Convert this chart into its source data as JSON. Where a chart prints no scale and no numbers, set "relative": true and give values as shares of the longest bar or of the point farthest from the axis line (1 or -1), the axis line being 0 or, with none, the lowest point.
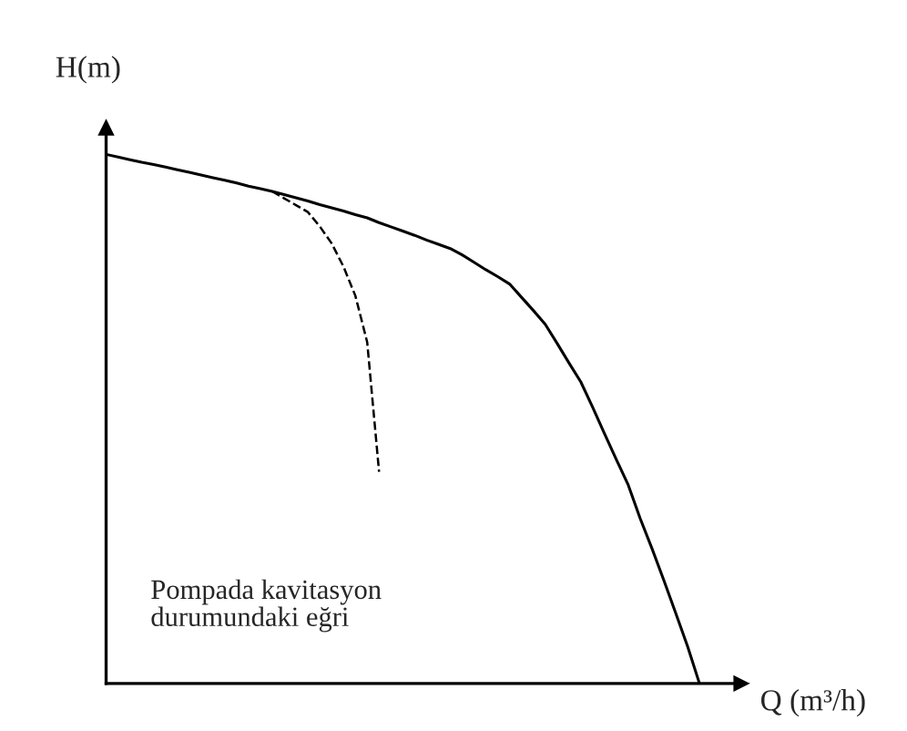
{
  "chart_data": {
    "type": "line",
    "relative": true,
    "xlabel": "Q (m³/h)",
    "ylabel": "H(m)",
    "categories": [
      null,
      null,
      null,
      null,
      null,
      null,
      null,
      null,
      null,
      null,
      null,
      null,
      null,
      null,
      null,
      null,
      null,
      null,
      null,
      null,
      null,
      null,
      null,
      null,
      null,
      null,
      null,
      null,
      null,
      null,
      null,
      null,
      null,
      null,
      null,
      null,
      null,
      null,
      null,
      null,
      null,
      null,
      null,
      null,
      null,
      null,
      null,
      null,
      null,
      null,
      null
    ],
    "series": [
      {
        "color": "#000000",
        "line_style": "solid",
        "values": [
          1.0,
          0.995,
          0.99,
          0.985,
          0.981,
          0.976,
          0.971,
          0.966,
          0.961,
          0.956,
          0.951,
          0.946,
          0.94,
          0.935,
          0.93,
          0.924,
          0.918,
          0.912,
          0.905,
          0.899,
          0.893,
          0.886,
          0.88,
          0.871,
          0.863,
          0.855,
          0.847,
          0.838,
          0.83,
          0.822,
          0.81,
          0.796,
          0.782,
          0.769,
          0.755,
          0.73,
          0.705,
          0.679,
          0.643,
          0.606,
          0.57,
          0.522,
          0.472,
          0.423,
          0.375,
          0.312,
          0.255,
          0.195,
          0.133,
          0.07,
          0
        ]
      },
      {
        "color": "#000000",
        "line_style": "dashed",
        "values": [
          null,
          null,
          null,
          null,
          null,
          null,
          null,
          null,
          null,
          null,
          null,
          null,
          null,
          null,
          0.93,
          0.917,
          0.904,
          0.891,
          0.864,
          0.832,
          0.788,
          0.733,
          0.645,
          0.4,
          null,
          null,
          null,
          null,
          null,
          null,
          null,
          null,
          null,
          null,
          null,
          null,
          null,
          null,
          null,
          null,
          null,
          null,
          null,
          null,
          null,
          null,
          null,
          null,
          null,
          null,
          null
        ]
      }
    ],
    "annotations": [
      "Pompada kavitasyon\ndurumundaki eğri"
    ]
  }
}
